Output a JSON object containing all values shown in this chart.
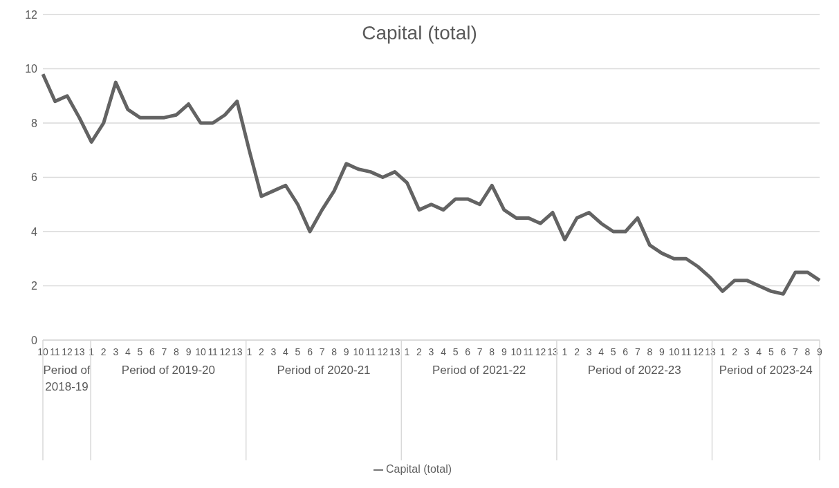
{
  "chart_data": {
    "type": "line",
    "title": "Capital (total)",
    "categories": [
      "10",
      "11",
      "12",
      "13",
      "1",
      "2",
      "3",
      "4",
      "5",
      "6",
      "7",
      "8",
      "9",
      "10",
      "11",
      "12",
      "13",
      "1",
      "2",
      "3",
      "4",
      "5",
      "6",
      "7",
      "8",
      "9",
      "10",
      "11",
      "12",
      "13",
      "1",
      "2",
      "3",
      "4",
      "5",
      "6",
      "7",
      "8",
      "9",
      "10",
      "11",
      "12",
      "13",
      "1",
      "2",
      "3",
      "4",
      "5",
      "6",
      "7",
      "8",
      "9",
      "10",
      "11",
      "12",
      "13",
      "1",
      "2",
      "3",
      "4",
      "5",
      "6",
      "7",
      "8",
      "9"
    ],
    "series": [
      {
        "name": "Capital (total)",
        "color": "#636363",
        "values": [
          9.8,
          8.8,
          9.0,
          8.2,
          7.3,
          8.0,
          9.5,
          8.5,
          8.2,
          8.2,
          8.2,
          8.3,
          8.7,
          8.0,
          8.0,
          8.3,
          8.8,
          7.0,
          5.3,
          5.5,
          5.7,
          5.0,
          4.0,
          4.8,
          5.5,
          6.5,
          6.3,
          6.2,
          6.0,
          6.2,
          5.8,
          4.8,
          5.0,
          4.8,
          5.2,
          5.2,
          5.0,
          5.7,
          4.8,
          4.5,
          4.5,
          4.3,
          4.7,
          3.7,
          4.5,
          4.7,
          4.3,
          4.0,
          4.0,
          4.5,
          3.5,
          3.2,
          3.0,
          3.0,
          2.7,
          2.3,
          1.8,
          2.2,
          2.2,
          2.0,
          1.8,
          1.7,
          2.5,
          2.5,
          2.2
        ]
      }
    ],
    "annotations": [
      "Period of 2018-19",
      "Period of 2019-20",
      "Period of 2020-21",
      "Period of 2021-22",
      "Period of 2022-23",
      "Period of 2023-24"
    ],
    "ylim": [
      0,
      12
    ],
    "yticks": [
      0,
      2,
      4,
      6,
      8,
      10,
      12
    ],
    "grid": "y",
    "legend": "bottom",
    "marker": "none",
    "line_style": "solid"
  }
}
